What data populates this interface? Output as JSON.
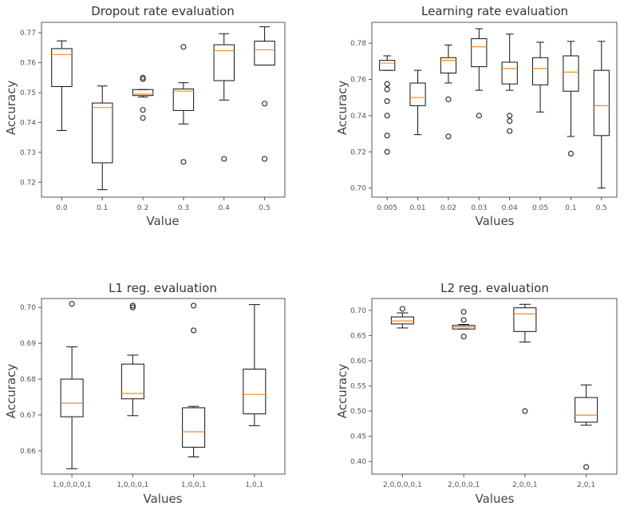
{
  "chart_data": [
    {
      "type": "box",
      "title": "Dropout rate evaluation",
      "xlabel": "Value",
      "ylabel": "Accuracy",
      "ylim": [
        0.715,
        0.7735
      ],
      "yticks": [
        "0.72",
        "0.73",
        "0.74",
        "0.75",
        "0.76",
        "0.77"
      ],
      "yticks_values": [
        0.72,
        0.73,
        0.74,
        0.75,
        0.76,
        0.77
      ],
      "categories": [
        "0.0",
        "0.1",
        "0.2",
        "0.3",
        "0.4",
        "0.5"
      ],
      "boxes": [
        {
          "whislo": 0.7373,
          "q1": 0.752,
          "med": 0.7627,
          "q3": 0.7647,
          "whishi": 0.7673,
          "fliers": []
        },
        {
          "whislo": 0.7175,
          "q1": 0.7265,
          "med": 0.745,
          "q3": 0.7465,
          "whishi": 0.7522,
          "fliers": []
        },
        {
          "whislo": 0.7485,
          "q1": 0.749,
          "med": 0.7495,
          "q3": 0.751,
          "whishi": 0.751,
          "fliers": [
            0.7415,
            0.7442,
            0.7545,
            0.755
          ]
        },
        {
          "whislo": 0.7395,
          "q1": 0.744,
          "med": 0.7505,
          "q3": 0.7512,
          "whishi": 0.7533,
          "fliers": [
            0.7268,
            0.7653
          ]
        },
        {
          "whislo": 0.7475,
          "q1": 0.754,
          "med": 0.764,
          "q3": 0.766,
          "whishi": 0.7697,
          "fliers": [
            0.7278
          ]
        },
        {
          "whislo": 0.7592,
          "q1": 0.7592,
          "med": 0.7643,
          "q3": 0.7672,
          "whishi": 0.772,
          "fliers": [
            0.7278,
            0.7463
          ]
        }
      ]
    },
    {
      "type": "box",
      "title": "Learning rate evaluation",
      "xlabel": "Values",
      "ylabel": "Accuracy",
      "ylim": [
        0.695,
        0.7915
      ],
      "yticks": [
        "0.70",
        "0.72",
        "0.74",
        "0.76",
        "0.78"
      ],
      "yticks_values": [
        0.7,
        0.72,
        0.74,
        0.76,
        0.78
      ],
      "categories": [
        "0.005",
        "0.01",
        "0.02",
        "0.03",
        "0.04",
        "0.05",
        "0.1",
        "0.5"
      ],
      "boxes": [
        {
          "whislo": 0.765,
          "q1": 0.765,
          "med": 0.769,
          "q3": 0.7705,
          "whishi": 0.773,
          "fliers": [
            0.72,
            0.729,
            0.74,
            0.748,
            0.7545,
            0.7575
          ]
        },
        {
          "whislo": 0.7295,
          "q1": 0.7455,
          "med": 0.75,
          "q3": 0.758,
          "whishi": 0.765,
          "fliers": []
        },
        {
          "whislo": 0.758,
          "q1": 0.7635,
          "med": 0.7705,
          "q3": 0.772,
          "whishi": 0.779,
          "fliers": [
            0.7285,
            0.749
          ]
        },
        {
          "whislo": 0.754,
          "q1": 0.767,
          "med": 0.778,
          "q3": 0.7825,
          "whishi": 0.788,
          "fliers": [
            0.74
          ]
        },
        {
          "whislo": 0.754,
          "q1": 0.7575,
          "med": 0.766,
          "q3": 0.7695,
          "whishi": 0.785,
          "fliers": [
            0.7315,
            0.737,
            0.74
          ]
        },
        {
          "whislo": 0.742,
          "q1": 0.757,
          "med": 0.766,
          "q3": 0.772,
          "whishi": 0.7805,
          "fliers": []
        },
        {
          "whislo": 0.7285,
          "q1": 0.7535,
          "med": 0.764,
          "q3": 0.773,
          "whishi": 0.781,
          "fliers": [
            0.719
          ]
        },
        {
          "whislo": 0.7,
          "q1": 0.729,
          "med": 0.7455,
          "q3": 0.765,
          "whishi": 0.781,
          "fliers": []
        }
      ]
    },
    {
      "type": "box",
      "title": "L1 reg. evaluation",
      "xlabel": "Values",
      "ylabel": "Accuracy",
      "ylim": [
        0.6535,
        0.7025
      ],
      "yticks": [
        "0.66",
        "0.67",
        "0.68",
        "0.69",
        "0.70"
      ],
      "yticks_values": [
        0.66,
        0.67,
        0.68,
        0.69,
        0.7
      ],
      "categories": [
        "1,0,0,0,0,1",
        "1,0,0,0,1",
        "1,0,0,1",
        "1,0,1"
      ],
      "boxes": [
        {
          "whislo": 0.655,
          "q1": 0.6695,
          "med": 0.6733,
          "q3": 0.68,
          "whishi": 0.689,
          "fliers": [
            0.701
          ]
        },
        {
          "whislo": 0.6698,
          "q1": 0.6745,
          "med": 0.676,
          "q3": 0.6842,
          "whishi": 0.6867,
          "fliers": [
            0.7,
            0.7005
          ]
        },
        {
          "whislo": 0.6583,
          "q1": 0.661,
          "med": 0.6653,
          "q3": 0.672,
          "whishi": 0.6724,
          "fliers": [
            0.6936,
            0.7005
          ]
        },
        {
          "whislo": 0.667,
          "q1": 0.6703,
          "med": 0.6757,
          "q3": 0.6828,
          "whishi": 0.7008,
          "fliers": []
        }
      ]
    },
    {
      "type": "box",
      "title": "L2 reg. evaluation",
      "xlabel": "Values",
      "ylabel": "Accuracy",
      "ylim": [
        0.375,
        0.7235
      ],
      "yticks": [
        "0.40",
        "0.45",
        "0.50",
        "0.55",
        "0.60",
        "0.65",
        "0.70"
      ],
      "yticks_values": [
        0.4,
        0.45,
        0.5,
        0.55,
        0.6,
        0.65,
        0.7
      ],
      "categories": [
        "2,0,0,0,0,1",
        "2,0,0,0,1",
        "2,0,0,1",
        "2,0,1"
      ],
      "boxes": [
        {
          "whislo": 0.665,
          "q1": 0.673,
          "med": 0.679,
          "q3": 0.687,
          "whishi": 0.695,
          "fliers": [
            0.703
          ]
        },
        {
          "whislo": 0.663,
          "q1": 0.663,
          "med": 0.667,
          "q3": 0.67,
          "whishi": 0.672,
          "fliers": [
            0.648,
            0.681,
            0.697
          ]
        },
        {
          "whislo": 0.637,
          "q1": 0.658,
          "med": 0.693,
          "q3": 0.705,
          "whishi": 0.712,
          "fliers": [
            0.5
          ]
        },
        {
          "whislo": 0.472,
          "q1": 0.478,
          "med": 0.492,
          "q3": 0.527,
          "whishi": 0.552,
          "fliers": [
            0.389
          ]
        }
      ]
    }
  ]
}
